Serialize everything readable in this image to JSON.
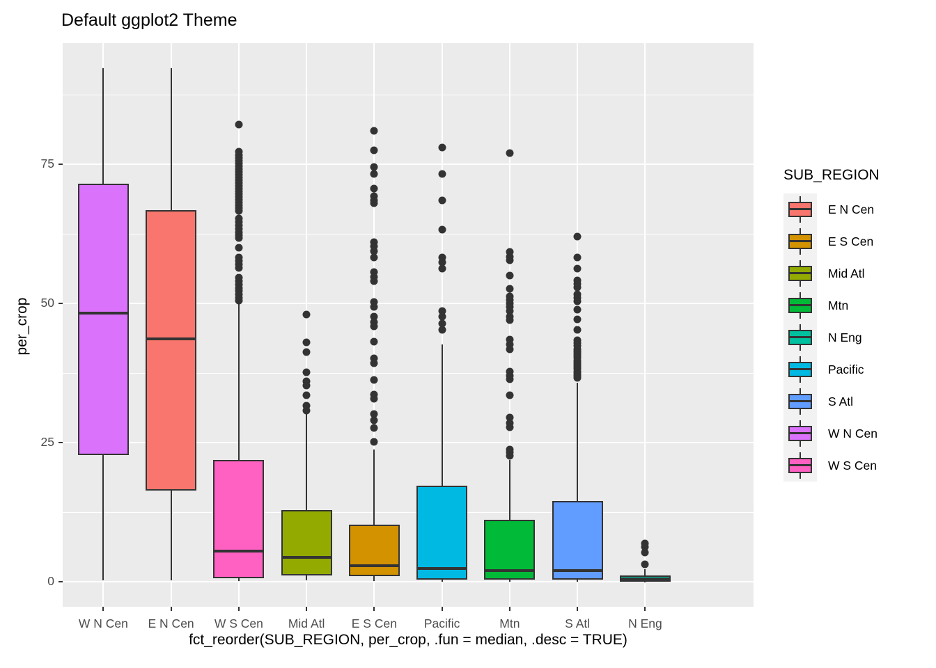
{
  "title": "Default ggplot2 Theme",
  "chart_data": {
    "type": "boxplot",
    "title": "Default ggplot2 Theme",
    "xlabel": "fct_reorder(SUB_REGION, per_crop, .fun = median, .desc = TRUE)",
    "ylabel": "per_crop",
    "ylim": [
      -4.5,
      96.75
    ],
    "y_ticks": [
      0,
      25,
      50,
      75
    ],
    "y_minor_gridlines": [
      12.5,
      37.5,
      62.5,
      87.5
    ],
    "grid": "on",
    "panel_background": "#EBEBEB",
    "gridline_color": "#ffffff",
    "line_color": "#333333",
    "tick_label_color": "#4D4D4D",
    "categories": [
      "W N Cen",
      "E N Cen",
      "W S Cen",
      "Mid Atl",
      "E S Cen",
      "Pacific",
      "Mtn",
      "S Atl",
      "N Eng"
    ],
    "boxes": [
      {
        "label": "W N Cen",
        "color": "#DB72FB",
        "whisker_low": 0.2,
        "q1": 22.7,
        "median": 48.3,
        "q3": 71.5,
        "whisker_high": 92.3,
        "outliers": []
      },
      {
        "label": "E N Cen",
        "color": "#F8766D",
        "whisker_low": 0.2,
        "q1": 16.4,
        "median": 43.6,
        "q3": 66.8,
        "whisker_high": 92.3,
        "outliers": []
      },
      {
        "label": "W S Cen",
        "color": "#FF61C3",
        "whisker_low": 0.1,
        "q1": 0.6,
        "median": 5.5,
        "q3": 21.9,
        "whisker_high": 49.9,
        "outliers": [
          82.1,
          77.3,
          76.6,
          76.1,
          75.6,
          75.1,
          74.6,
          74.1,
          73.6,
          73.1,
          72.6,
          72.1,
          71.6,
          71.1,
          70.6,
          70.1,
          69.6,
          69.1,
          68.6,
          68.1,
          67.6,
          67.1,
          66.6,
          65.2,
          64.6,
          64.0,
          63.4,
          62.8,
          62.2,
          61.8,
          60.0,
          58.2,
          57.6,
          57.0,
          56.4,
          54.6,
          54.0,
          53.4,
          52.8,
          52.2,
          51.6,
          51.0,
          50.5
        ]
      },
      {
        "label": "Mid Atl",
        "color": "#93AA00",
        "whisker_low": 0.3,
        "q1": 1.1,
        "median": 4.4,
        "q3": 12.9,
        "whisker_high": 30.3,
        "outliers": [
          48.0,
          43.0,
          41.2,
          37.6,
          36.0,
          35.2,
          33.5,
          31.6,
          30.8
        ]
      },
      {
        "label": "E S Cen",
        "color": "#D39200",
        "whisker_low": 0.1,
        "q1": 1.0,
        "median": 2.9,
        "q3": 10.3,
        "whisker_high": 23.8,
        "outliers": [
          81.0,
          77.5,
          74.5,
          73.2,
          70.6,
          69.3,
          68.5,
          68.0,
          61.0,
          60.2,
          59.4,
          58.3,
          55.6,
          54.7,
          54.0,
          50.2,
          49.4,
          47.6,
          46.6,
          45.9,
          43.1,
          40.1,
          39.2,
          36.2,
          33.6,
          32.9,
          30.1,
          29.0,
          27.6,
          25.1
        ]
      },
      {
        "label": "Pacific",
        "color": "#00B9E3",
        "whisker_low": 0.05,
        "q1": 0.4,
        "median": 2.4,
        "q3": 17.3,
        "whisker_high": 42.6,
        "outliers": [
          78.0,
          73.2,
          68.5,
          63.2,
          58.2,
          57.4,
          56.2,
          48.6,
          47.6,
          46.4,
          45.2
        ]
      },
      {
        "label": "Mtn",
        "color": "#00BA38",
        "whisker_low": 0.05,
        "q1": 0.4,
        "median": 2.0,
        "q3": 11.1,
        "whisker_high": 21.9,
        "outliers": [
          77.0,
          59.2,
          58.4,
          57.8,
          55.0,
          52.6,
          51.2,
          50.6,
          50.0,
          49.4,
          48.6,
          47.6,
          47.0,
          43.5,
          42.6,
          41.8,
          37.8,
          37.0,
          36.4,
          33.5,
          29.5,
          28.5,
          27.7,
          23.8,
          23.2,
          22.6
        ]
      },
      {
        "label": "S Atl",
        "color": "#619CFF",
        "whisker_low": 0.05,
        "q1": 0.4,
        "median": 2.0,
        "q3": 14.5,
        "whisker_high": 35.8,
        "outliers": [
          62.0,
          58.2,
          56.2,
          54.1,
          53.5,
          52.9,
          51.6,
          51.0,
          50.4,
          48.9,
          47.1,
          45.3,
          43.4,
          42.9,
          42.4,
          41.8,
          41.4,
          41.0,
          40.6,
          40.2,
          39.8,
          39.4,
          39.0,
          38.6,
          38.2,
          37.8,
          37.4,
          37.0,
          36.6
        ]
      },
      {
        "label": "N Eng",
        "color": "#00C19F",
        "whisker_low": 0.0,
        "q1": 0.05,
        "median": 0.5,
        "q3": 1.1,
        "whisker_high": 2.2,
        "outliers": [
          3.1,
          5.3,
          6.2,
          6.9
        ]
      }
    ],
    "legend": {
      "title": "SUB_REGION",
      "position": "right",
      "entries": [
        {
          "label": "E N Cen",
          "color": "#F8766D"
        },
        {
          "label": "E S Cen",
          "color": "#D39200"
        },
        {
          "label": "Mid Atl",
          "color": "#93AA00"
        },
        {
          "label": "Mtn",
          "color": "#00BA38"
        },
        {
          "label": "N Eng",
          "color": "#00C19F"
        },
        {
          "label": "Pacific",
          "color": "#00B9E3"
        },
        {
          "label": "S Atl",
          "color": "#619CFF"
        },
        {
          "label": "W N Cen",
          "color": "#DB72FB"
        },
        {
          "label": "W S Cen",
          "color": "#FF61C3"
        }
      ]
    }
  }
}
